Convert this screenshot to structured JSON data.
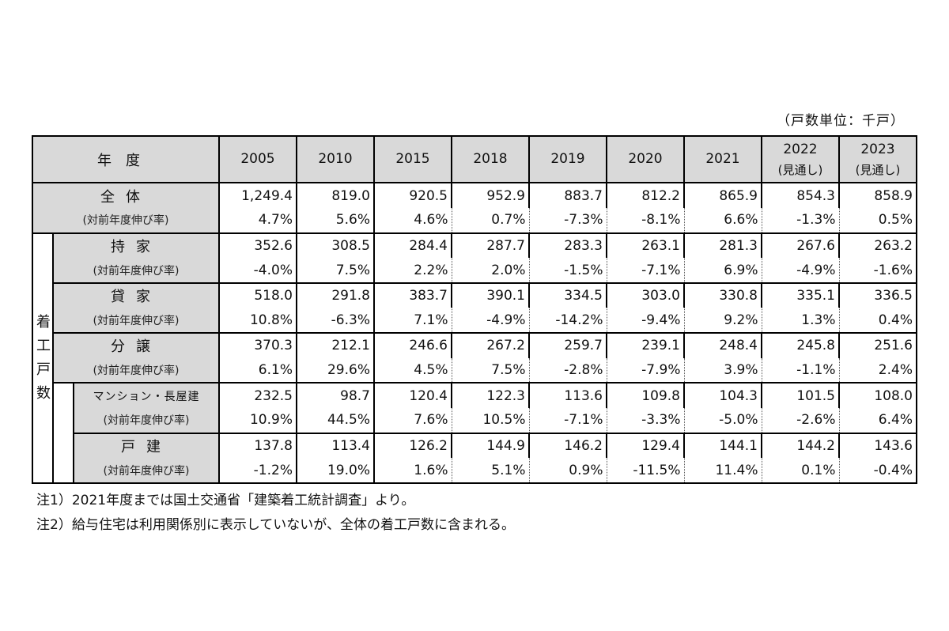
{
  "unit_label": "（戸数単位：千戸）",
  "header": {
    "year_label": "年度",
    "years": [
      {
        "year": "2005",
        "sub": ""
      },
      {
        "year": "2010",
        "sub": ""
      },
      {
        "year": "2015",
        "sub": ""
      },
      {
        "year": "2018",
        "sub": ""
      },
      {
        "year": "2019",
        "sub": ""
      },
      {
        "year": "2020",
        "sub": ""
      },
      {
        "year": "2021",
        "sub": ""
      },
      {
        "year": "2022",
        "sub": "(見通し)"
      },
      {
        "year": "2023",
        "sub": "(見通し)"
      }
    ]
  },
  "side_label": [
    "着",
    "工",
    "戸",
    "数"
  ],
  "growth_label": "(対前年度伸び率)",
  "rows": [
    {
      "label": "全体",
      "values": [
        "1,249.4",
        "819.0",
        "920.5",
        "952.9",
        "883.7",
        "812.2",
        "865.9",
        "854.3",
        "858.9"
      ],
      "growth": [
        "4.7%",
        "5.6%",
        "4.6%",
        "0.7%",
        "-7.3%",
        "-8.1%",
        "6.6%",
        "-1.3%",
        "0.5%"
      ]
    },
    {
      "label": "持家",
      "values": [
        "352.6",
        "308.5",
        "284.4",
        "287.7",
        "283.3",
        "263.1",
        "281.3",
        "267.6",
        "263.2"
      ],
      "growth": [
        "-4.0%",
        "7.5%",
        "2.2%",
        "2.0%",
        "-1.5%",
        "-7.1%",
        "6.9%",
        "-4.9%",
        "-1.6%"
      ]
    },
    {
      "label": "貸家",
      "values": [
        "518.0",
        "291.8",
        "383.7",
        "390.1",
        "334.5",
        "303.0",
        "330.8",
        "335.1",
        "336.5"
      ],
      "growth": [
        "10.8%",
        "-6.3%",
        "7.1%",
        "-4.9%",
        "-14.2%",
        "-9.4%",
        "9.2%",
        "1.3%",
        "0.4%"
      ]
    },
    {
      "label": "分譲",
      "values": [
        "370.3",
        "212.1",
        "246.6",
        "267.2",
        "259.7",
        "239.1",
        "248.4",
        "245.8",
        "251.6"
      ],
      "growth": [
        "6.1%",
        "29.6%",
        "4.5%",
        "7.5%",
        "-2.8%",
        "-7.9%",
        "3.9%",
        "-1.1%",
        "2.4%"
      ]
    },
    {
      "label": "マンション・長屋建",
      "values": [
        "232.5",
        "98.7",
        "120.4",
        "122.3",
        "113.6",
        "109.8",
        "104.3",
        "101.5",
        "108.0"
      ],
      "growth": [
        "10.9%",
        "44.5%",
        "7.6%",
        "10.5%",
        "-7.1%",
        "-3.3%",
        "-5.0%",
        "-2.6%",
        "6.4%"
      ]
    },
    {
      "label": "戸建",
      "values": [
        "137.8",
        "113.4",
        "126.2",
        "144.9",
        "146.2",
        "129.4",
        "144.1",
        "144.2",
        "143.6"
      ],
      "growth": [
        "-1.2%",
        "19.0%",
        "1.6%",
        "5.1%",
        "0.9%",
        "-11.5%",
        "11.4%",
        "0.1%",
        "-0.4%"
      ]
    }
  ],
  "notes": [
    "注1）2021年度までは国土交通省「建築着工統計調査」より。",
    "注2）給与住宅は利用関係別に表示していないが、全体の着工戸数に含まれる。"
  ]
}
